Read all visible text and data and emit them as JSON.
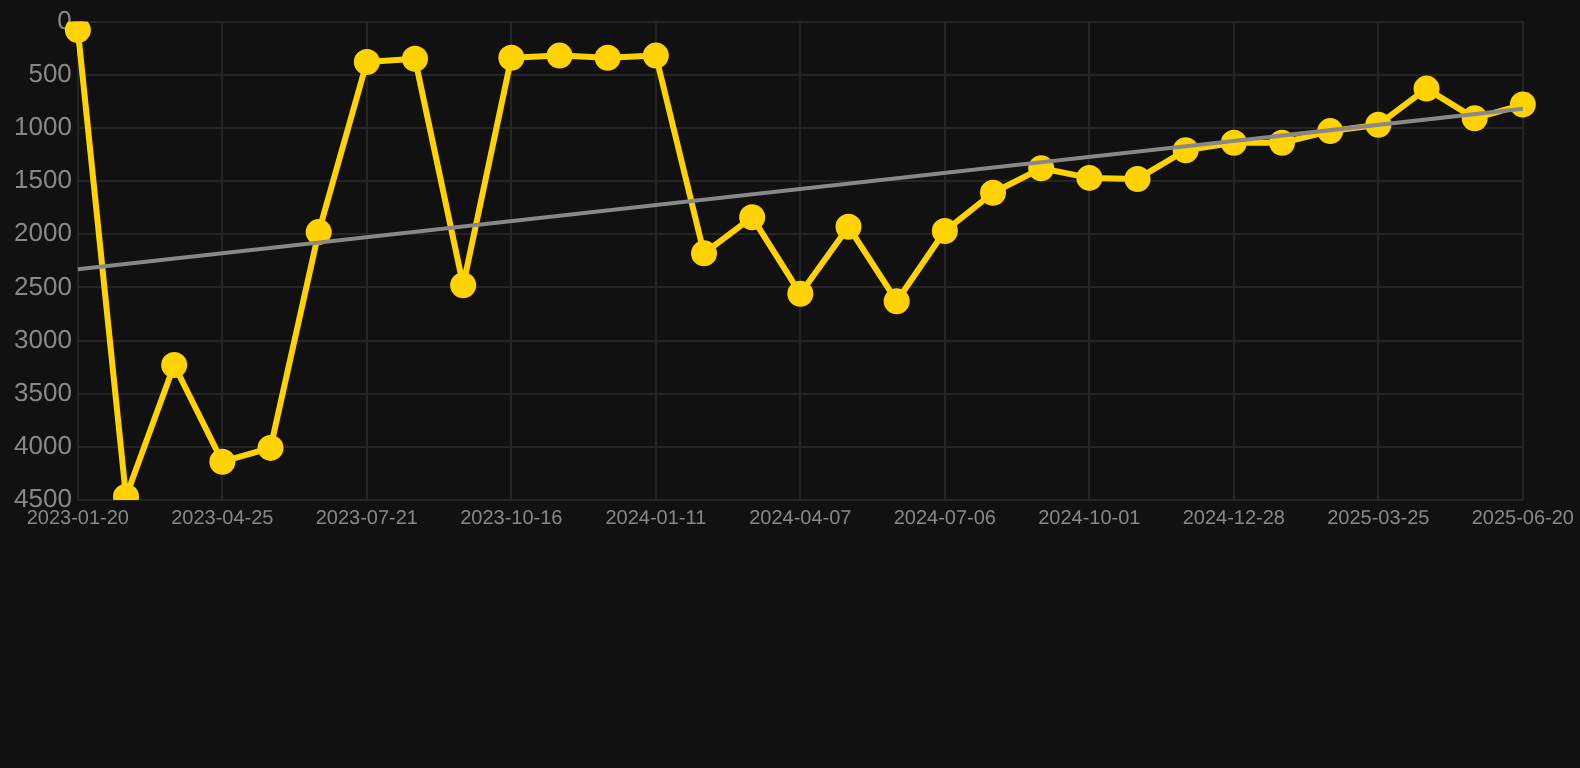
{
  "chart_data": {
    "type": "line",
    "categories": [
      "2023-01-20",
      null,
      null,
      "2023-04-25",
      null,
      null,
      "2023-07-21",
      null,
      null,
      "2023-10-16",
      null,
      null,
      "2024-01-11",
      null,
      null,
      "2024-04-07",
      null,
      null,
      "2024-07-06",
      null,
      null,
      "2024-10-01",
      null,
      null,
      "2024-12-28",
      null,
      null,
      "2025-03-25",
      null,
      null,
      "2025-06-20"
    ],
    "series": [
      {
        "color": "#ffd200",
        "marker": "circle",
        "values": [
          80,
          4470,
          3230,
          4140,
          4010,
          1980,
          380,
          350,
          2480,
          340,
          320,
          340,
          320,
          2180,
          1840,
          2560,
          1930,
          2630,
          1970,
          1610,
          1380,
          1470,
          1480,
          1210,
          1140,
          1140,
          1030,
          970,
          630,
          910,
          780
        ]
      },
      {
        "color": "#888888",
        "marker": "none",
        "values": [
          2330,
          null,
          null,
          null,
          null,
          null,
          null,
          null,
          null,
          null,
          null,
          null,
          null,
          null,
          null,
          null,
          null,
          null,
          null,
          null,
          null,
          null,
          null,
          null,
          null,
          null,
          null,
          null,
          null,
          null,
          820
        ]
      }
    ],
    "ylim": [
      4500,
      0
    ],
    "yticks": [
      0,
      500,
      1000,
      1500,
      2000,
      2500,
      3000,
      3500,
      4000,
      4500
    ],
    "grid": true,
    "legend": false
  }
}
